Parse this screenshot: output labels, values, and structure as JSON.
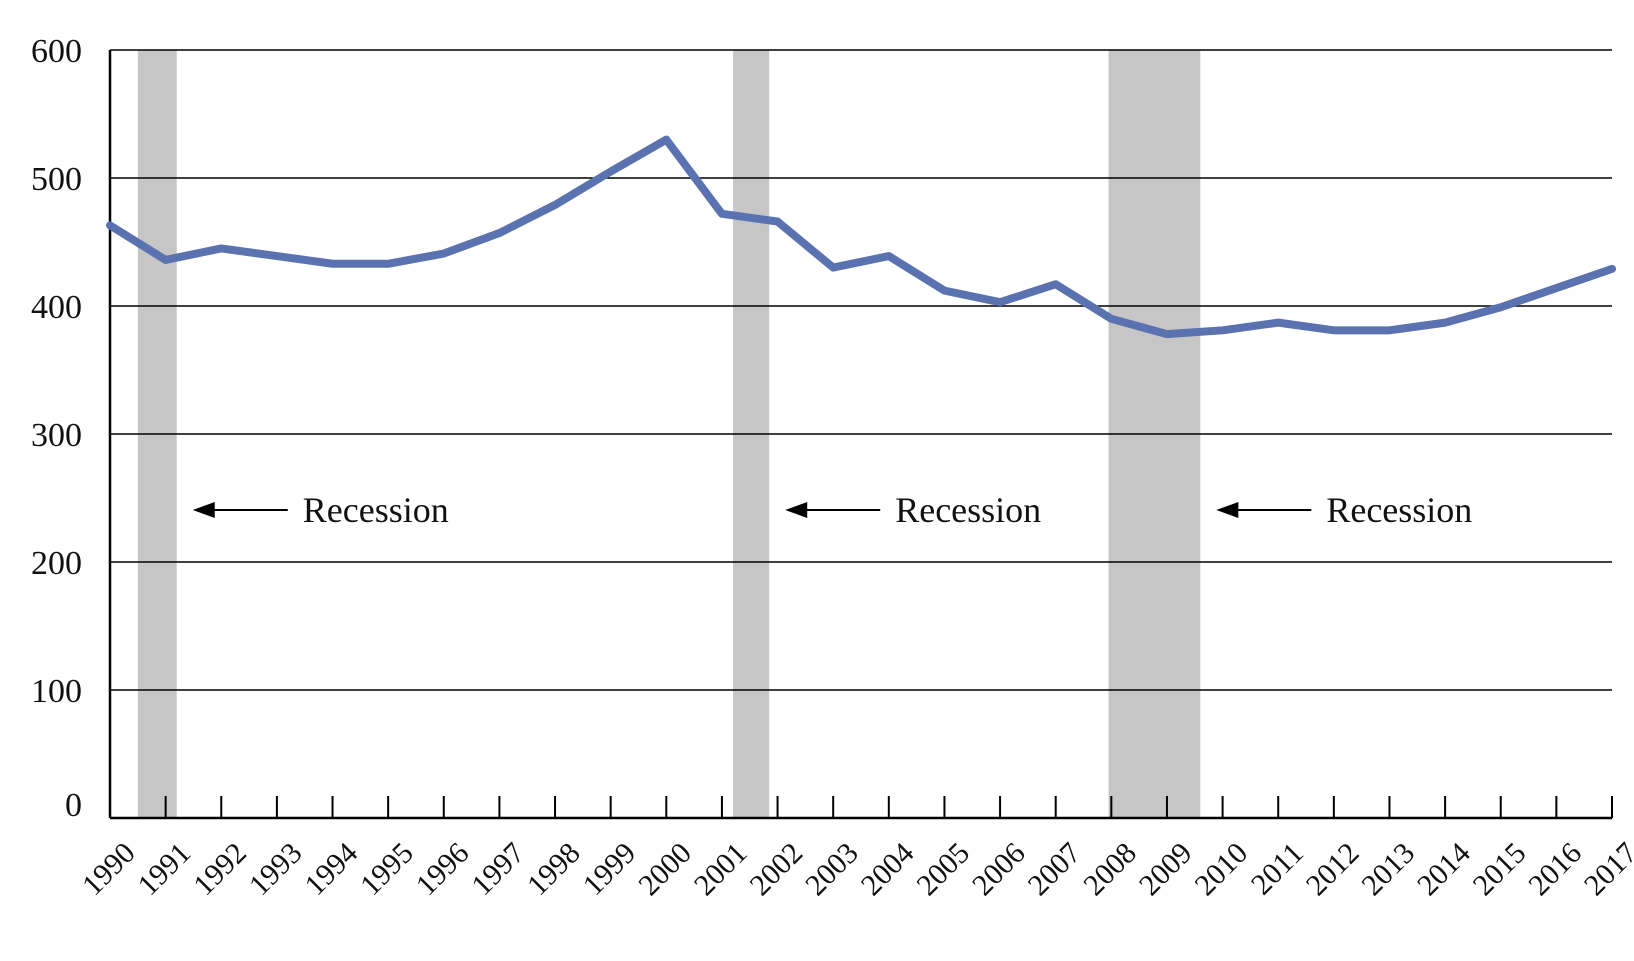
{
  "chart_data": {
    "type": "line",
    "title": "",
    "xlabel": "",
    "ylabel": "",
    "ylim": [
      0,
      600
    ],
    "yticks": [
      0,
      100,
      200,
      300,
      400,
      500,
      600
    ],
    "grid": "horizontal",
    "legend": "none",
    "x": [
      "1990",
      "1991",
      "1992",
      "1993",
      "1994",
      "1995",
      "1996",
      "1997",
      "1998",
      "1999",
      "2000",
      "2001",
      "2002",
      "2003",
      "2004",
      "2005",
      "2006",
      "2007",
      "2008",
      "2009",
      "2010",
      "2011",
      "2012",
      "2013",
      "2014",
      "2015",
      "2016",
      "2017"
    ],
    "series": [
      {
        "color": "#5b72b0",
        "values": [
          463,
          436,
          445,
          439,
          433,
          433,
          441,
          457,
          479,
          505,
          530,
          472,
          466,
          430,
          439,
          412,
          403,
          417,
          390,
          378,
          381,
          387,
          381,
          381,
          387,
          399,
          414,
          429
        ]
      }
    ],
    "recessions": [
      {
        "start": 1990.5,
        "end": 1991.2,
        "label": "Recession"
      },
      {
        "start": 2001.2,
        "end": 2001.85,
        "label": "Recession"
      },
      {
        "start": 2007.95,
        "end": 2009.6,
        "label": "Recession"
      }
    ],
    "colors": {
      "line": "#5b72b0",
      "recession": "#c6c6c6",
      "grid": "#000000"
    }
  }
}
